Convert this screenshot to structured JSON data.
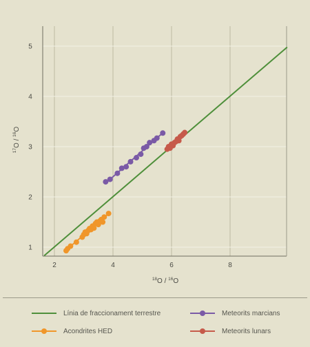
{
  "chart_data": {
    "type": "scatter",
    "title": "",
    "xlabel": "18O / 16O",
    "ylabel": "17O / 16O",
    "xlim": [
      1.5,
      10.0
    ],
    "ylim": [
      0.8,
      5.4
    ],
    "xticks": [
      2,
      4,
      6,
      8
    ],
    "yticks": [
      1,
      2,
      3,
      4,
      5
    ],
    "grid": true,
    "legend_position": "bottom",
    "reference_line": {
      "name": "Línia de fraccionament terrestre",
      "color": "#4e8f3a",
      "x": [
        1.65,
        9.95
      ],
      "y": [
        0.83,
        4.98
      ]
    },
    "series": [
      {
        "name": "Meteorits marcians",
        "color": "#7a5aa6",
        "x": [
          3.75,
          3.9,
          4.15,
          4.3,
          4.45,
          4.6,
          4.8,
          4.95,
          5.05,
          5.15,
          5.25,
          5.4,
          5.5,
          5.7
        ],
        "y": [
          2.3,
          2.35,
          2.47,
          2.57,
          2.6,
          2.7,
          2.78,
          2.85,
          2.97,
          3.0,
          3.08,
          3.12,
          3.17,
          3.27
        ]
      },
      {
        "name": "Acondrites HED",
        "color": "#f0962a",
        "x": [
          2.4,
          2.45,
          2.55,
          2.75,
          2.95,
          3.0,
          3.05,
          3.1,
          3.15,
          3.2,
          3.25,
          3.3,
          3.35,
          3.4,
          3.45,
          3.5,
          3.55,
          3.6,
          3.65,
          3.7,
          3.85
        ],
        "y": [
          0.93,
          0.97,
          1.02,
          1.1,
          1.2,
          1.25,
          1.3,
          1.27,
          1.33,
          1.37,
          1.35,
          1.42,
          1.38,
          1.47,
          1.5,
          1.45,
          1.52,
          1.55,
          1.5,
          1.6,
          1.67
        ]
      },
      {
        "name": "Meteorits lunars",
        "color": "#c65a4a",
        "x": [
          5.85,
          5.9,
          5.95,
          6.0,
          6.05,
          6.1,
          6.15,
          6.2,
          6.25,
          6.3,
          6.35,
          6.4,
          6.45
        ],
        "y": [
          2.95,
          3.0,
          2.97,
          3.05,
          3.02,
          3.08,
          3.1,
          3.15,
          3.12,
          3.2,
          3.22,
          3.25,
          3.28
        ]
      }
    ]
  },
  "legend": {
    "items": [
      {
        "label": "Línia de fraccionament terrestre",
        "color": "#4e8f3a",
        "marker": "line"
      },
      {
        "label": "Meteorits marcians",
        "color": "#7a5aa6",
        "marker": "dot-line"
      },
      {
        "label": "Acondrites HED",
        "color": "#f0962a",
        "marker": "dot-line"
      },
      {
        "label": "Meteorits lunars",
        "color": "#c65a4a",
        "marker": "dot-line"
      }
    ]
  }
}
